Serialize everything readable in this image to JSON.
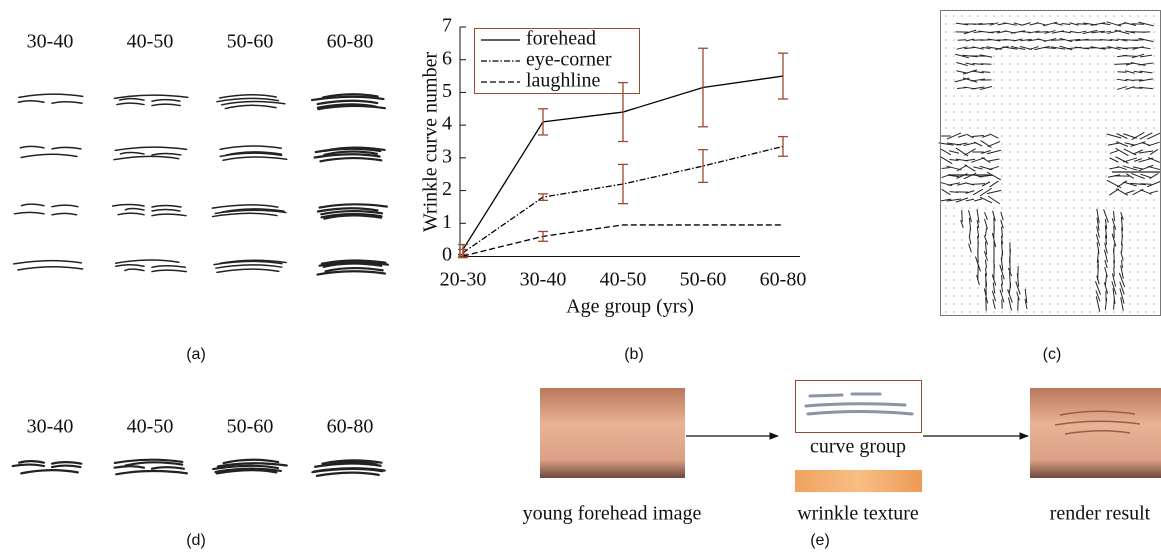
{
  "panel_labels": [
    "(a)",
    "(b)",
    "(c)",
    "(d)",
    "(e)"
  ],
  "panel_a": {
    "age_groups": [
      "30-40",
      "40-50",
      "50-60",
      "60-80"
    ]
  },
  "chart_data": {
    "type": "line",
    "xlabel": "Age group (yrs)",
    "ylabel": "Wrinkle curve number",
    "categories": [
      "20-30",
      "30-40",
      "40-50",
      "50-60",
      "60-80"
    ],
    "ylim": [
      0,
      7
    ],
    "yticks": [
      0,
      1,
      2,
      3,
      4,
      5,
      6,
      7
    ],
    "legend": "upper left",
    "error_color": "#9b4a2e",
    "series": [
      {
        "name": "forehead",
        "color": "#000000",
        "dash": "solid",
        "values": [
          0.2,
          4.1,
          4.4,
          5.15,
          5.5
        ],
        "errors": [
          0.15,
          0.4,
          0.9,
          1.2,
          0.7
        ]
      },
      {
        "name": "eye-corner",
        "color": "#000000",
        "dash": "dashdot",
        "values": [
          0.1,
          1.8,
          2.2,
          2.75,
          3.35
        ],
        "errors": [
          0.1,
          0.1,
          0.6,
          0.5,
          0.3
        ]
      },
      {
        "name": "laughline",
        "color": "#000000",
        "dash": "dashed",
        "values": [
          0,
          0.6,
          0.95,
          0.95,
          0.95
        ],
        "errors": [
          0.05,
          0.15,
          null,
          null,
          null
        ]
      }
    ]
  },
  "panel_d": {
    "age_groups": [
      "30-40",
      "40-50",
      "50-60",
      "60-80"
    ]
  },
  "panel_e": {
    "source": "young forehead image",
    "curves": "curve group",
    "texture": "wrinkle texture",
    "result": "render result"
  }
}
